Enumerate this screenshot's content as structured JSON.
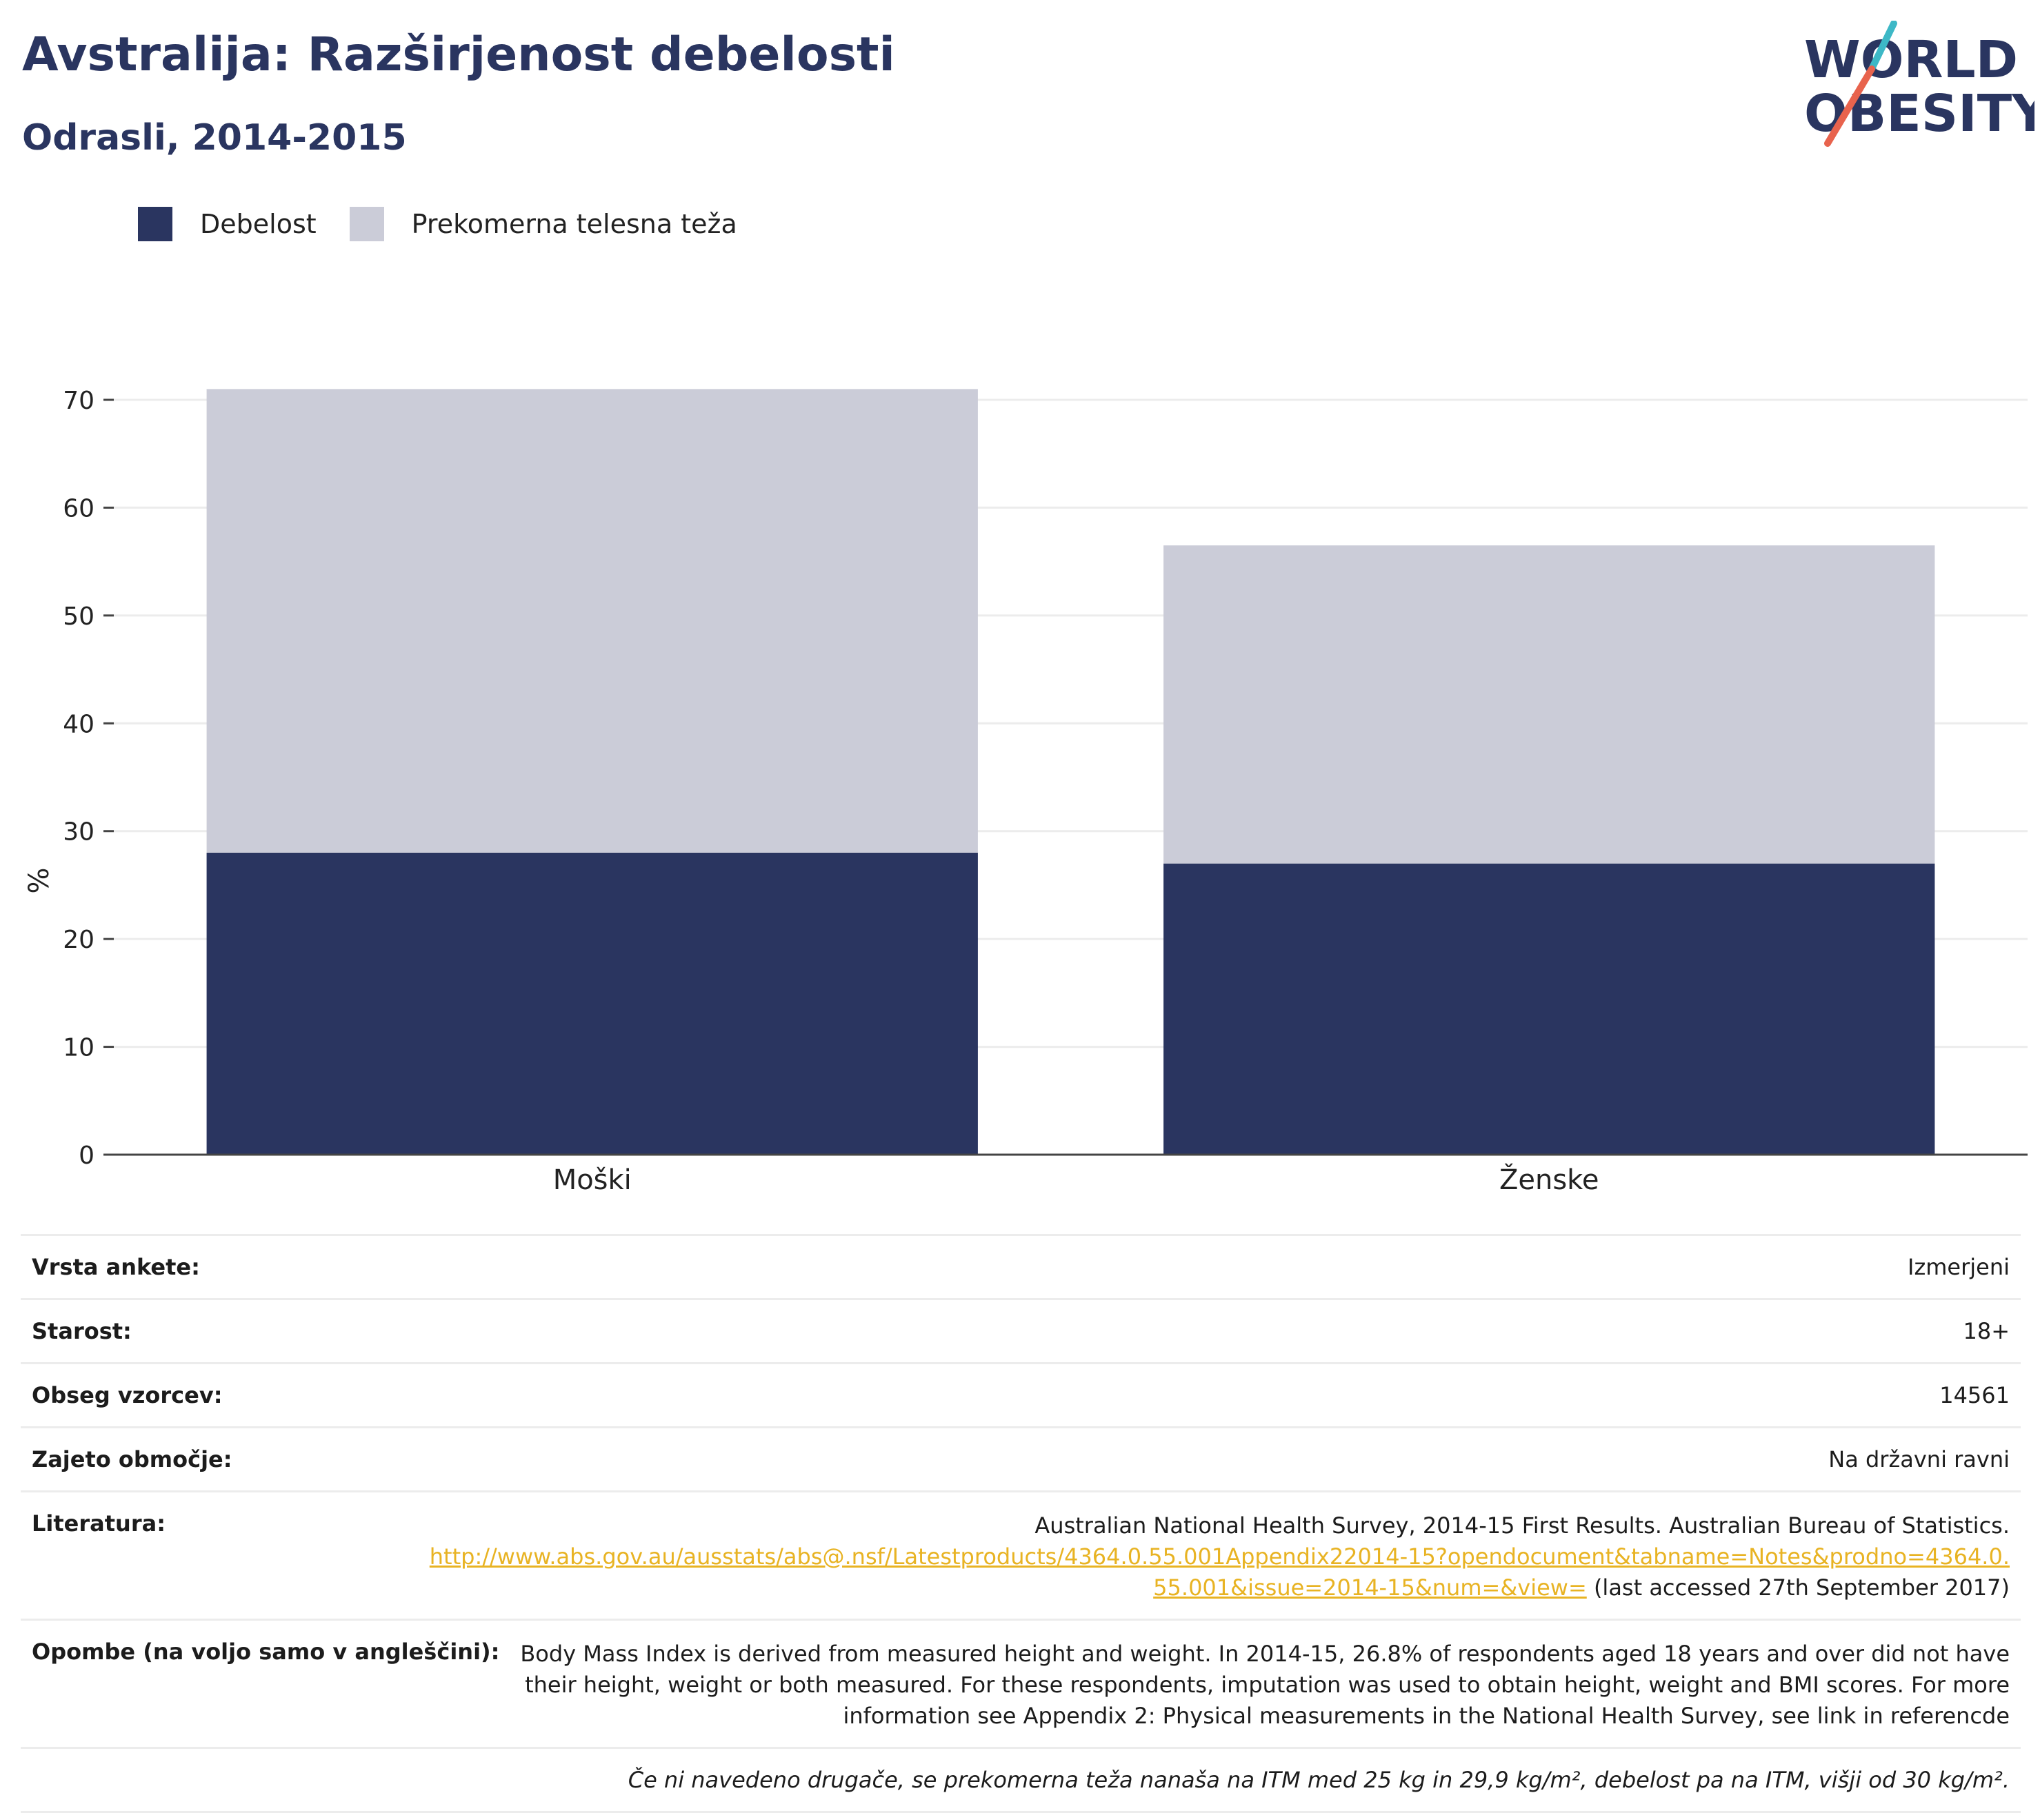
{
  "header": {
    "title": "Avstralija: Razširjenost debelosti",
    "subtitle": "Odrasli, 2014-2015"
  },
  "logo": {
    "line1": "WORLD",
    "line2": "OBESITY",
    "accent_colors": [
      "#3db8c6",
      "#e8634d"
    ]
  },
  "chart_data": {
    "type": "bar",
    "stacked": true,
    "categories": [
      "Moški",
      "Ženske"
    ],
    "series": [
      {
        "name": "Debelost",
        "color": "#2a3560",
        "values": [
          28.0,
          27.0
        ]
      },
      {
        "name": "Prekomerna telesna teža",
        "color": "#cbccd8",
        "values": [
          43.0,
          29.5
        ]
      }
    ],
    "ylabel": "%",
    "ylim": [
      0,
      70
    ],
    "yticks": [
      0,
      10,
      20,
      30,
      40,
      50,
      60,
      70
    ],
    "grid": true,
    "legend_position": "top-left"
  },
  "info": {
    "rows": [
      {
        "key": "Vrsta ankete:",
        "value": "Izmerjeni"
      },
      {
        "key": "Starost:",
        "value": "18+"
      },
      {
        "key": "Obseg vzorcev:",
        "value": "14561"
      },
      {
        "key": "Zajeto območje:",
        "value": "Na državni ravni"
      }
    ],
    "literature": {
      "key": "Literatura:",
      "text": "Australian National Health Survey, 2014-15 First Results. Australian Bureau of Statistics.",
      "link": "http://www.abs.gov.au/ausstats/abs@.nsf/Latestproducts/4364.0.55.001Appendix22014-15?opendocument&tabname=Notes&prodno=4364.0.55.001&issue=2014-15&num=&view=",
      "suffix": " (last accessed 27th September 2017)"
    },
    "notes": {
      "key": "Opombe (na voljo samo v angleščini):",
      "text": "Body Mass Index is derived from measured height and weight. In 2014-15, 26.8% of respondents aged 18 years and over did not have their height, weight or both measured. For these respondents, imputation was used to obtain height, weight and BMI scores. For more information see Appendix 2: Physical measurements in the National Health Survey, see link in referencde"
    },
    "footnote": "Če ni navedeno drugače, se prekomerna teža nanaša na ITM med 25 kg in 29,9 kg/m², debelost pa na ITM, višji od 30 kg/m²."
  }
}
